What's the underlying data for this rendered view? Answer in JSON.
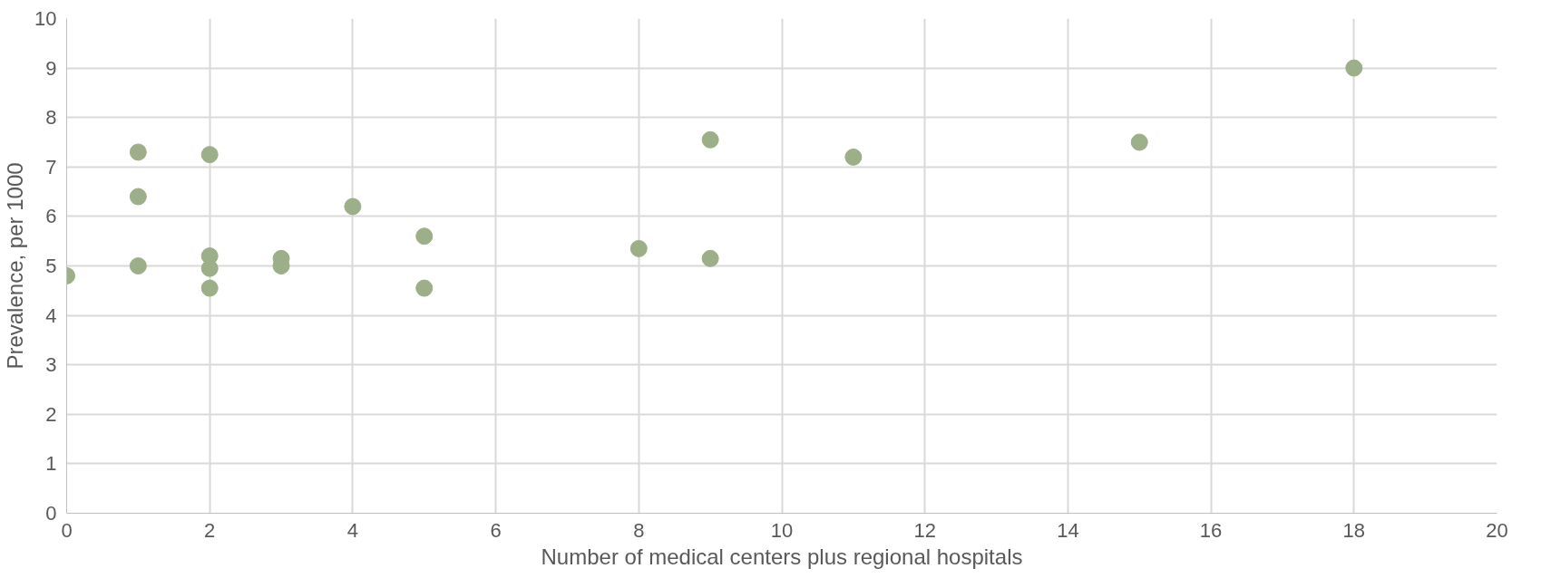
{
  "chart_data": {
    "type": "scatter",
    "xlabel": "Number of medical centers plus regional hospitals",
    "ylabel": "Prevalence, per 1000",
    "x": [
      0,
      1,
      1,
      1,
      2,
      2,
      2,
      2,
      3,
      3,
      4,
      5,
      5,
      8,
      9,
      9,
      11,
      15,
      18
    ],
    "series": [
      {
        "color": "#9caf88",
        "values": [
          4.8,
          7.3,
          6.4,
          5.0,
          7.25,
          5.2,
          4.95,
          4.55,
          5.15,
          5.0,
          6.2,
          5.6,
          4.55,
          5.35,
          7.55,
          5.15,
          7.2,
          7.5,
          9.0
        ]
      }
    ],
    "xlim": [
      0,
      20
    ],
    "xticks": [
      0,
      2,
      4,
      6,
      8,
      10,
      12,
      14,
      16,
      18,
      20
    ],
    "ylim": [
      0,
      10
    ],
    "yticks": [
      0,
      1,
      2,
      3,
      4,
      5,
      6,
      7,
      8,
      9,
      10
    ],
    "grid": true,
    "marker": "circle"
  }
}
